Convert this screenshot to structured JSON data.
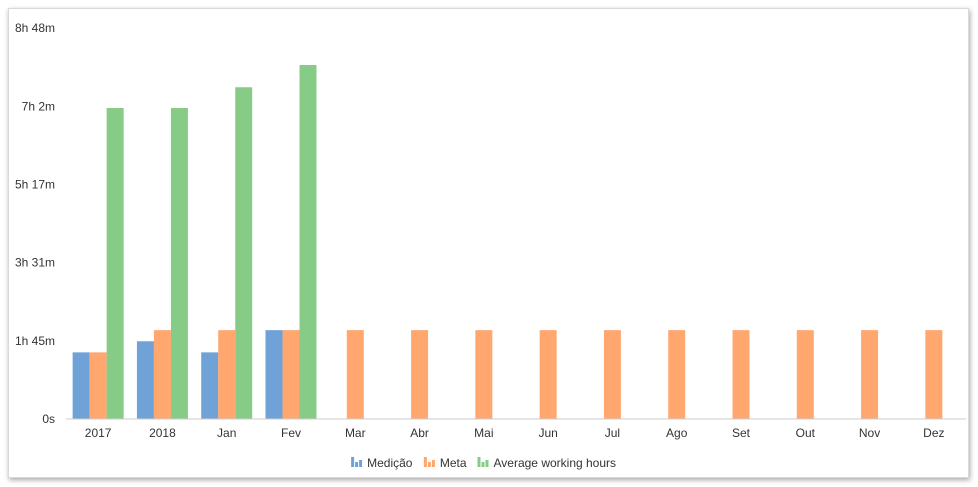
{
  "chart_data": {
    "type": "bar",
    "title": "",
    "xlabel": "",
    "ylabel": "",
    "categories": [
      "2017",
      "2018",
      "Jan",
      "Fev",
      "Mar",
      "Abr",
      "Mai",
      "Jun",
      "Jul",
      "Ago",
      "Set",
      "Out",
      "Nov",
      "Dez"
    ],
    "y_unit": "minutes",
    "ylim": [
      0,
      528
    ],
    "y_ticks": [
      {
        "value": 0,
        "label": "0s"
      },
      {
        "value": 105,
        "label": "1h 45m"
      },
      {
        "value": 211,
        "label": "3h 31m"
      },
      {
        "value": 317,
        "label": "5h 17m"
      },
      {
        "value": 422,
        "label": "7h 2m"
      },
      {
        "value": 528,
        "label": "8h 48m"
      }
    ],
    "grid": false,
    "legend_position": "bottom-center",
    "series": [
      {
        "name": "Medição",
        "color": "#6fa3d8",
        "values": [
          90,
          105,
          90,
          120,
          null,
          null,
          null,
          null,
          null,
          null,
          null,
          null,
          null,
          null
        ]
      },
      {
        "name": "Meta",
        "color": "#ffa76f",
        "values": [
          90,
          120,
          120,
          120,
          120,
          120,
          120,
          120,
          120,
          120,
          120,
          120,
          120,
          120
        ]
      },
      {
        "name": "Average working hours",
        "color": "#86cc86",
        "values": [
          420,
          420,
          448,
          478,
          null,
          null,
          null,
          null,
          null,
          null,
          null,
          null,
          null,
          null
        ]
      }
    ]
  }
}
